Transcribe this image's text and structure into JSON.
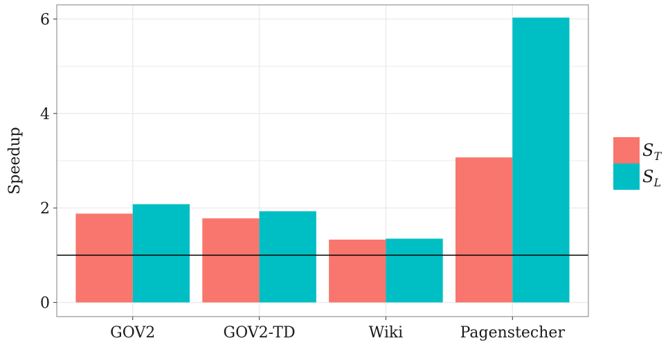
{
  "chart_data": {
    "type": "bar",
    "categories": [
      "GOV2",
      "GOV2-TD",
      "Wiki",
      "Pagenstecher"
    ],
    "series": [
      {
        "name": "S_T",
        "label_main": "S",
        "label_sub": "T",
        "color": "#F8766D",
        "values": [
          1.88,
          1.78,
          1.33,
          3.07
        ]
      },
      {
        "name": "S_L",
        "label_main": "S",
        "label_sub": "L",
        "color": "#00BFC4",
        "values": [
          2.08,
          1.93,
          1.35,
          6.03
        ]
      }
    ],
    "title": "",
    "xlabel": "",
    "ylabel": "Speedup",
    "ylim": [
      -0.3,
      6.3
    ],
    "yticks": [
      0,
      2,
      4,
      6
    ],
    "reference_line": 1,
    "grid": true,
    "legend_position": "right",
    "colors": {
      "grid": "#EBEBEB",
      "panel_border": "#7F7F7F",
      "reference_line": "#000000"
    }
  }
}
